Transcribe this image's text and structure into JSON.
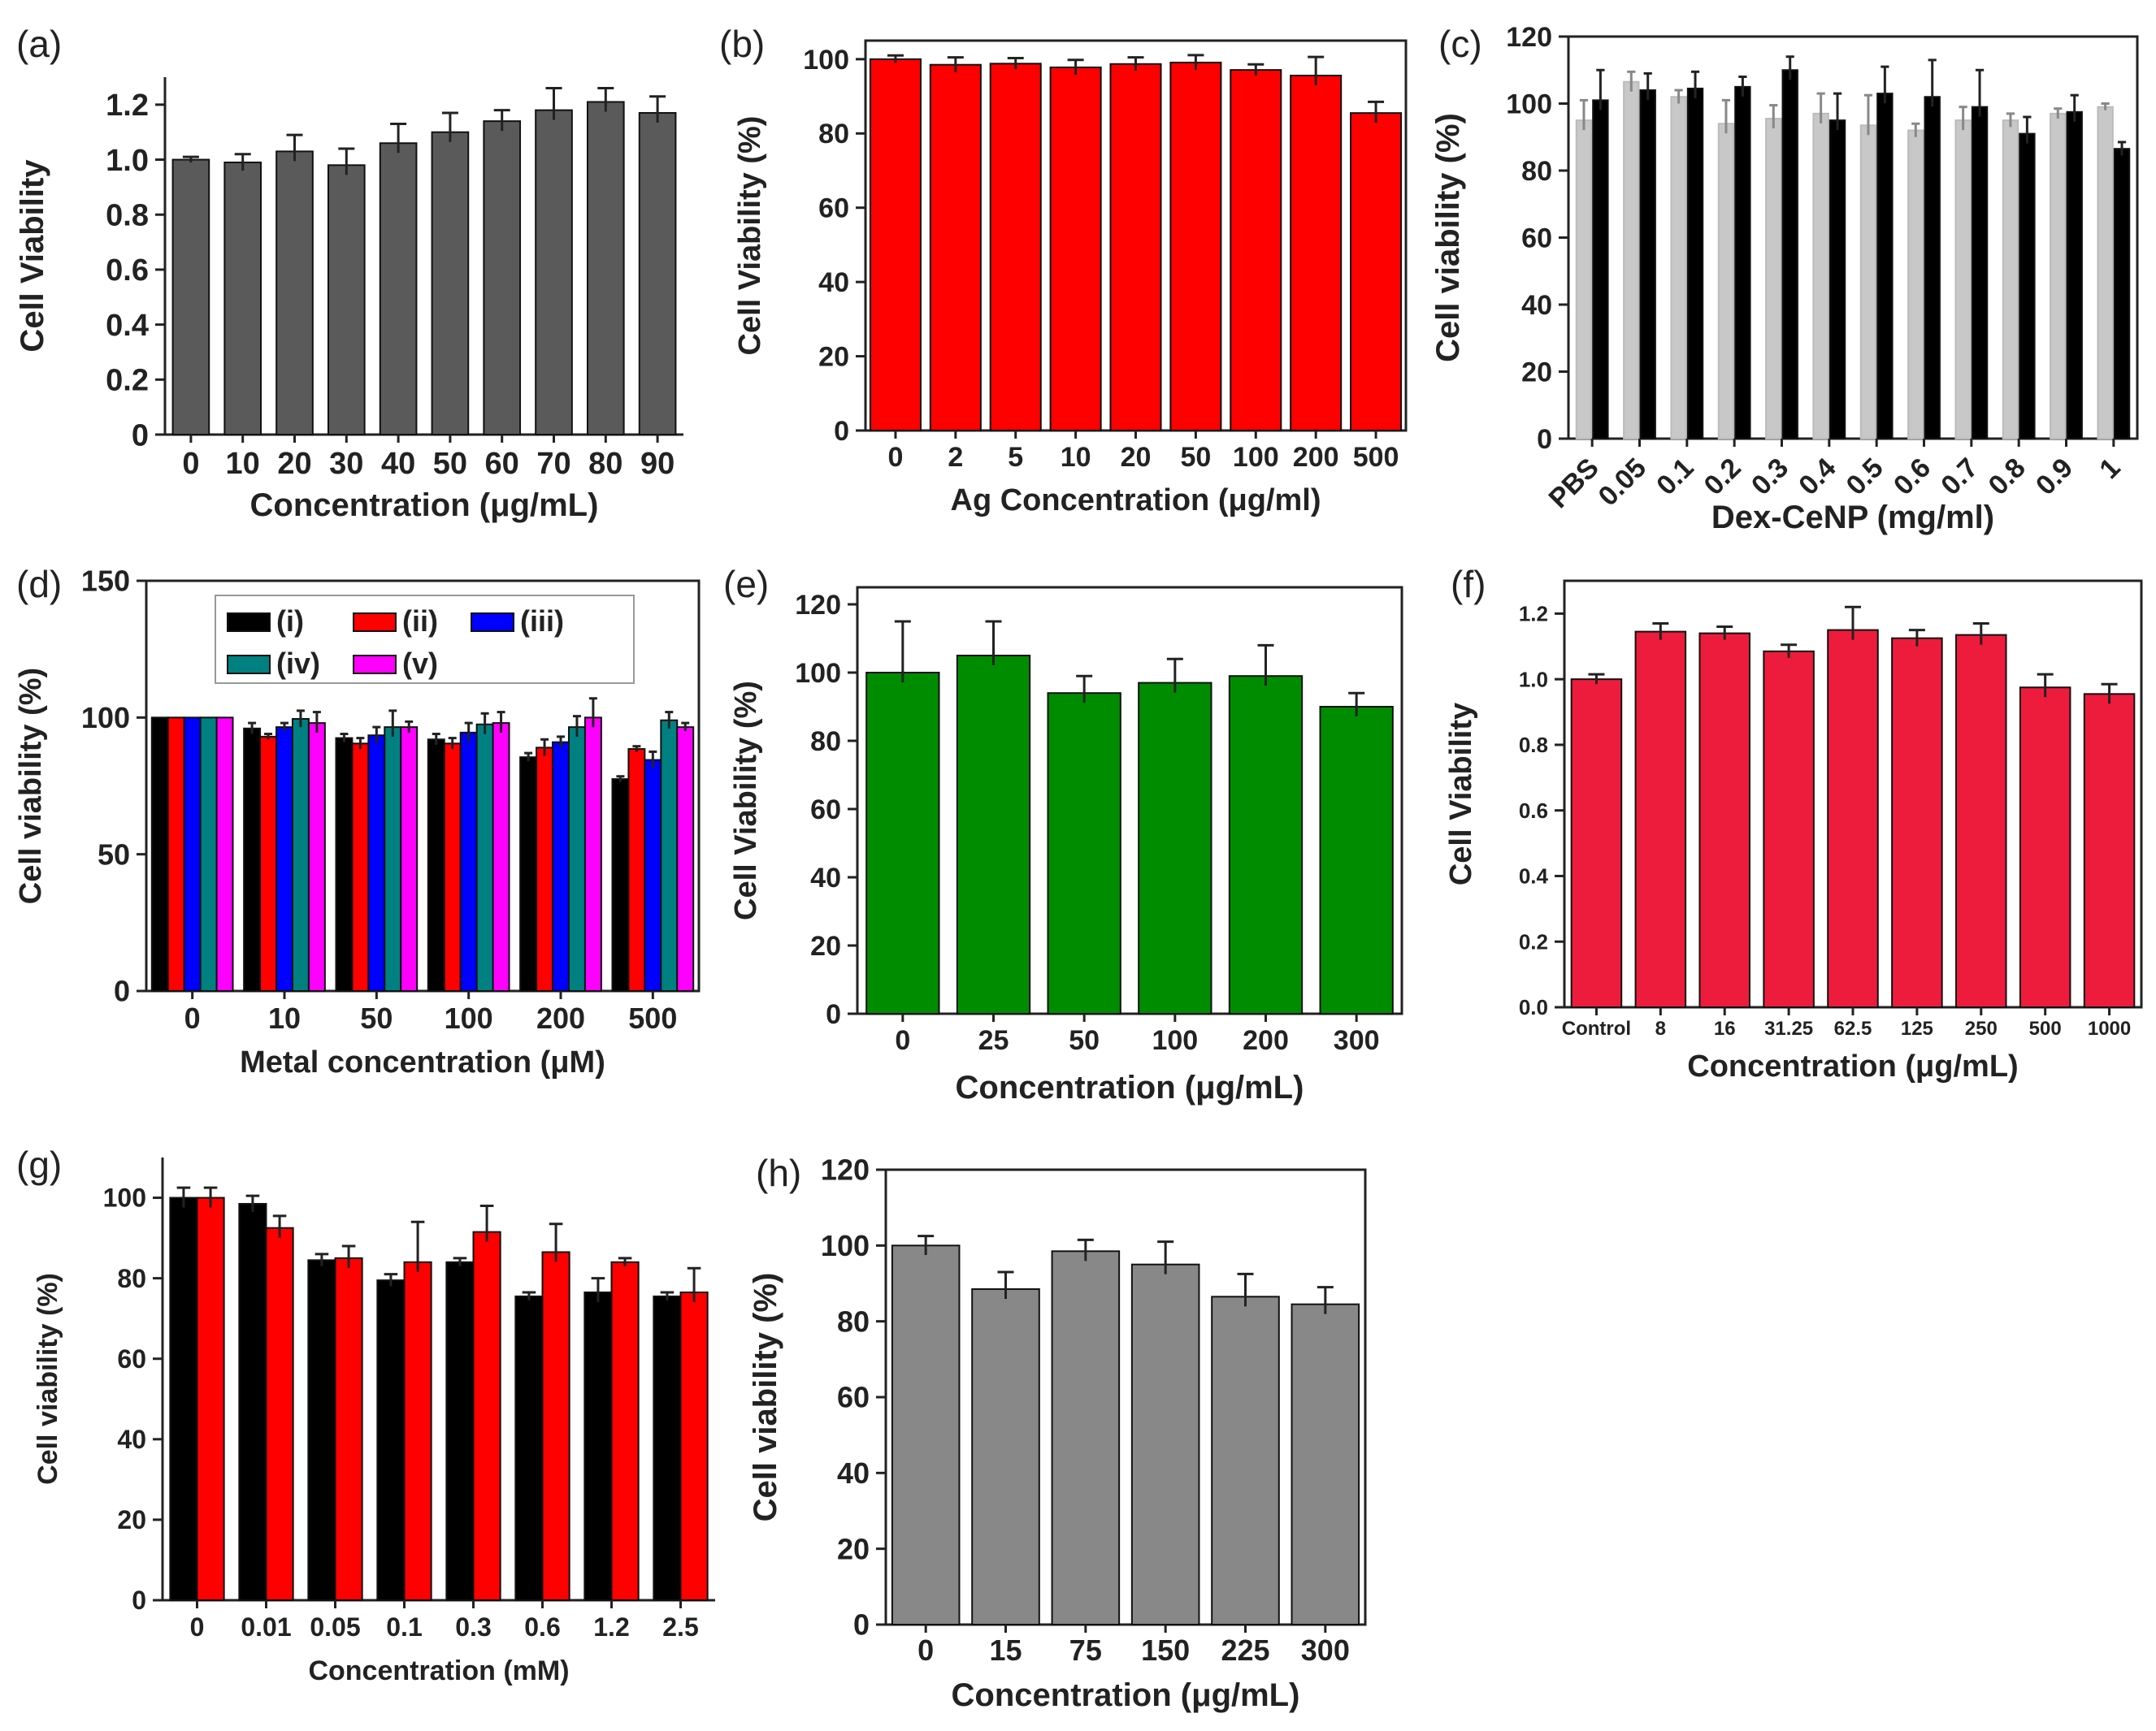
{
  "figure": {
    "chart_data": [
      {
        "panel": "(a)",
        "type": "bar",
        "categories": [
          "0",
          "10",
          "20",
          "30",
          "40",
          "50",
          "60",
          "70",
          "80",
          "90"
        ],
        "series": [
          {
            "name": "",
            "color": "#5a5a5a",
            "values": [
              1.0,
              0.99,
              1.03,
              0.98,
              1.06,
              1.1,
              1.14,
              1.18,
              1.21,
              1.17
            ],
            "errors": [
              0.01,
              0.03,
              0.06,
              0.06,
              0.07,
              0.07,
              0.04,
              0.08,
              0.05,
              0.06
            ]
          }
        ],
        "xlabel": "Concentration (μg/mL)",
        "ylabel": "Cell Viability",
        "ylim": [
          0,
          1.3
        ],
        "yticks": [
          "0",
          "0.2",
          "0.4",
          "0.6",
          "0.8",
          "1.0",
          "1.2"
        ],
        "ytickvals": [
          0,
          0.2,
          0.4,
          0.6,
          0.8,
          1.0,
          1.2
        ]
      },
      {
        "panel": "(b)",
        "type": "bar",
        "categories": [
          "0",
          "2",
          "5",
          "10",
          "20",
          "50",
          "100",
          "200",
          "500"
        ],
        "series": [
          {
            "name": "",
            "color": "#ff0000",
            "values": [
              100,
              98.5,
              98.8,
              97.8,
              98.7,
              99.1,
              97.1,
              95.6,
              85.5
            ],
            "errors": [
              1,
              2,
              1.5,
              2,
              1.8,
              2,
              1.5,
              5,
              3
            ]
          }
        ],
        "xlabel": "Ag Concentration (μg/ml)",
        "ylabel": "Cell Viability (%)",
        "ylim": [
          0,
          105
        ],
        "yticks": [
          "0",
          "20",
          "40",
          "60",
          "80",
          "100"
        ],
        "ytickvals": [
          0,
          20,
          40,
          60,
          80,
          100
        ]
      },
      {
        "panel": "(c)",
        "type": "bar",
        "categories": [
          "PBS",
          "0.05",
          "0.1",
          "0.2",
          "0.3",
          "0.4",
          "0.5",
          "0.6",
          "0.7",
          "0.8",
          "0.9",
          "1"
        ],
        "series": [
          {
            "name": "",
            "color": "#c8c8c8",
            "values": [
              95,
              106.5,
              102,
              94,
              95.5,
              97,
              93.5,
              92,
              95,
              95,
              97,
              99
            ],
            "errors": [
              6,
              3,
              2,
              7,
              4,
              6,
              9,
              2,
              4,
              2,
              1.5,
              1
            ]
          },
          {
            "name": "",
            "color": "#000000",
            "values": [
              101,
              104,
              104.5,
              105,
              110,
              95,
              103,
              102,
              99,
              91,
              97.5,
              86.5
            ],
            "errors": [
              9,
              5,
              5,
              3,
              4,
              8,
              8,
              11,
              11,
              5,
              5,
              2
            ]
          }
        ],
        "xlabel": "Dex-CeNP (mg/ml)",
        "ylabel": "Cell viability  (%)",
        "ylim": [
          0,
          120
        ],
        "yticks": [
          "0",
          "20",
          "40",
          "60",
          "80",
          "100",
          "120"
        ],
        "ytickvals": [
          0,
          20,
          40,
          60,
          80,
          100,
          120
        ]
      },
      {
        "panel": "(d)",
        "type": "bar",
        "categories": [
          "0",
          "10",
          "50",
          "100",
          "200",
          "500"
        ],
        "series": [
          {
            "name": "(i)",
            "color": "#000000",
            "values": [
              100,
              96,
              92.5,
              92,
              85.5,
              77.5
            ],
            "errors": [
              0,
              2,
              1.5,
              2,
              1.5,
              1
            ]
          },
          {
            "name": "(ii)",
            "color": "#ff0000",
            "values": [
              100,
              93,
              90.5,
              90.5,
              89,
              88.5
            ],
            "errors": [
              0,
              1,
              2,
              2,
              3,
              1
            ]
          },
          {
            "name": "(iii)",
            "color": "#0000ff",
            "values": [
              100,
              96.5,
              93.5,
              94.5,
              91,
              84.5
            ],
            "errors": [
              0,
              1.5,
              3,
              3.5,
              2,
              3
            ]
          },
          {
            "name": "(iv)",
            "color": "#008080",
            "values": [
              100,
              99.5,
              96.5,
              97.5,
              96.5,
              99
            ],
            "errors": [
              0,
              3,
              6,
              4,
              4,
              3
            ]
          },
          {
            "name": "(v)",
            "color": "#ff00ff",
            "values": [
              100,
              98,
              96.5,
              98,
              100,
              96.5
            ],
            "errors": [
              0,
              4,
              2,
              4,
              7,
              1.5
            ]
          }
        ],
        "xlabel": "Metal concentration (μM)",
        "ylabel": "Cell viability (%)",
        "ylim": [
          0,
          150
        ],
        "yticks": [
          "0",
          "50",
          "100",
          "150"
        ],
        "ytickvals": [
          0,
          50,
          100,
          150
        ]
      },
      {
        "panel": "(e)",
        "type": "bar",
        "categories": [
          "0",
          "25",
          "50",
          "100",
          "200",
          "300"
        ],
        "series": [
          {
            "name": "",
            "color": "#008c00",
            "values": [
              100,
              105,
              94,
              97,
              99,
              90
            ],
            "errors": [
              15,
              10,
              5,
              7,
              9,
              4
            ]
          }
        ],
        "xlabel": "Concentration (μg/mL)",
        "ylabel": "Cell Viability (%)",
        "ylim": [
          0,
          125
        ],
        "yticks": [
          "0",
          "20",
          "40",
          "60",
          "80",
          "100",
          "120"
        ],
        "ytickvals": [
          0,
          20,
          40,
          60,
          80,
          100,
          120
        ]
      },
      {
        "panel": "(f)",
        "type": "bar",
        "categories": [
          "Control",
          "8",
          "16",
          "31.25",
          "62.5",
          "125",
          "250",
          "500",
          "1000"
        ],
        "series": [
          {
            "name": "",
            "color": "#ee1c3c",
            "values": [
              1.0,
              1.145,
              1.14,
              1.085,
              1.15,
              1.125,
              1.135,
              0.975,
              0.955
            ],
            "errors": [
              0.015,
              0.025,
              0.02,
              0.02,
              0.07,
              0.025,
              0.035,
              0.04,
              0.03
            ]
          }
        ],
        "xlabel": "Concentration (μg/mL)",
        "ylabel": "Cell Viability",
        "ylim": [
          0,
          1.3
        ],
        "yticks": [
          "0.0",
          "0.2",
          "0.4",
          "0.6",
          "0.8",
          "1.0",
          "1.2"
        ],
        "ytickvals": [
          0,
          0.2,
          0.4,
          0.6,
          0.8,
          1.0,
          1.2
        ]
      },
      {
        "panel": "(g)",
        "type": "bar",
        "categories": [
          "0",
          "0.01",
          "0.05",
          "0.1",
          "0.3",
          "0.6",
          "1.2",
          "2.5"
        ],
        "series": [
          {
            "name": "",
            "color": "#000000",
            "values": [
              100,
              98.5,
              84.5,
              79.5,
              84,
              75.5,
              76.5,
              75.5
            ],
            "errors": [
              2.5,
              2,
              1.5,
              1.5,
              1,
              1,
              3.5,
              1
            ]
          },
          {
            "name": "",
            "color": "#ff0000",
            "values": [
              100,
              92.5,
              85,
              84,
              91.5,
              86.5,
              84,
              76.5
            ],
            "errors": [
              2.5,
              3,
              3,
              10,
              6.5,
              7,
              1,
              6
            ]
          }
        ],
        "xlabel": "Concentration (mM)",
        "ylabel": "Cell viability (%)",
        "ylim": [
          0,
          110
        ],
        "yticks": [
          "0",
          "20",
          "40",
          "60",
          "80",
          "100"
        ],
        "ytickvals": [
          0,
          20,
          40,
          60,
          80,
          100
        ]
      },
      {
        "panel": "(h)",
        "type": "bar",
        "categories": [
          "0",
          "15",
          "75",
          "150",
          "225",
          "300"
        ],
        "series": [
          {
            "name": "",
            "color": "#888888",
            "values": [
              100,
              88.5,
              98.5,
              95,
              86.5,
              84.5
            ],
            "errors": [
              2.5,
              4.5,
              3,
              6,
              6,
              4.5
            ]
          }
        ],
        "xlabel": "Concentration (μg/mL)",
        "ylabel": "Cell viability (%)",
        "ylim": [
          0,
          120
        ],
        "yticks": [
          "0",
          "20",
          "40",
          "60",
          "80",
          "100",
          "120"
        ],
        "ytickvals": [
          0,
          20,
          40,
          60,
          80,
          100,
          120
        ]
      }
    ]
  }
}
